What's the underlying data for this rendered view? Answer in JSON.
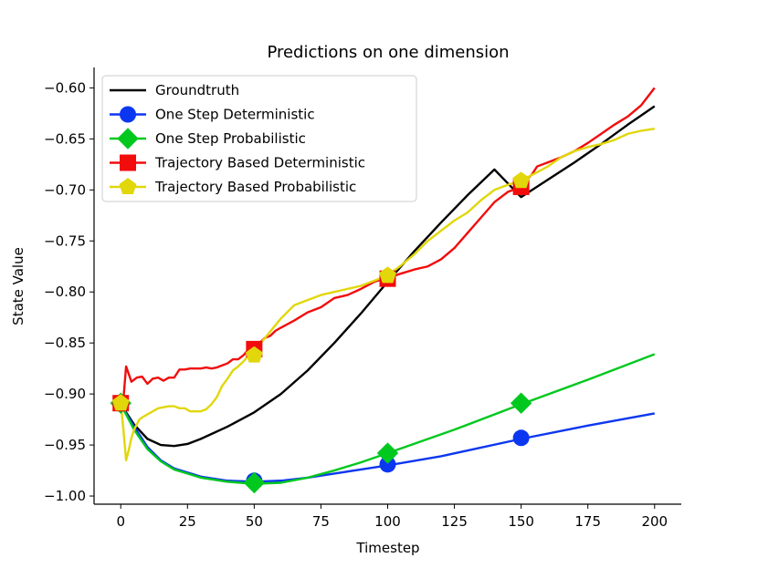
{
  "chart_data": {
    "type": "line",
    "title": "Predictions on one dimension",
    "xlabel": "Timestep",
    "ylabel": "State Value",
    "xlim": [
      -10,
      210
    ],
    "ylim": [
      -1.008,
      -0.58
    ],
    "xticks": [
      0,
      25,
      50,
      75,
      100,
      125,
      150,
      175,
      200
    ],
    "yticks": [
      -1.0,
      -0.95,
      -0.9,
      -0.85,
      -0.8,
      -0.75,
      -0.7,
      -0.65,
      -0.6
    ],
    "xtick_labels": [
      "0",
      "25",
      "50",
      "75",
      "100",
      "125",
      "150",
      "175",
      "200"
    ],
    "ytick_labels": [
      "−1.00",
      "−0.95",
      "−0.90",
      "−0.85",
      "−0.80",
      "−0.75",
      "−0.70",
      "−0.65",
      "−0.60"
    ],
    "legend_position": "top-left",
    "series": [
      {
        "name": "Groundtruth",
        "color": "#000000",
        "marker": "none",
        "x": [
          0,
          5,
          10,
          15,
          20,
          25,
          30,
          40,
          50,
          60,
          70,
          80,
          90,
          100,
          110,
          120,
          130,
          140,
          150,
          160,
          170,
          180,
          190,
          200
        ],
        "y": [
          -0.91,
          -0.93,
          -0.944,
          -0.95,
          -0.951,
          -0.949,
          -0.944,
          -0.932,
          -0.918,
          -0.9,
          -0.877,
          -0.85,
          -0.821,
          -0.79,
          -0.76,
          -0.732,
          -0.705,
          -0.68,
          -0.707,
          -0.69,
          -0.673,
          -0.655,
          -0.636,
          -0.618
        ],
        "markers_x": [],
        "markers_y": []
      },
      {
        "name": "One Step Deterministic",
        "color": "#0c37f0",
        "marker": "circle",
        "x": [
          0,
          5,
          10,
          15,
          20,
          30,
          40,
          50,
          60,
          70,
          80,
          90,
          100,
          120,
          150,
          175,
          200
        ],
        "y": [
          -0.91,
          -0.932,
          -0.952,
          -0.965,
          -0.973,
          -0.981,
          -0.985,
          -0.986,
          -0.985,
          -0.982,
          -0.978,
          -0.974,
          -0.97,
          -0.961,
          -0.944,
          -0.931,
          -0.919
        ],
        "markers_x": [
          50,
          100,
          150
        ],
        "markers_y": [
          -0.985,
          -0.969,
          -0.943
        ]
      },
      {
        "name": "One Step Probabilistic",
        "color": "#00c81e",
        "marker": "diamond",
        "x": [
          0,
          5,
          10,
          15,
          20,
          30,
          40,
          50,
          60,
          70,
          80,
          90,
          100,
          125,
          150,
          175,
          200
        ],
        "y": [
          -0.91,
          -0.935,
          -0.954,
          -0.966,
          -0.974,
          -0.982,
          -0.986,
          -0.988,
          -0.987,
          -0.982,
          -0.975,
          -0.967,
          -0.958,
          -0.935,
          -0.91,
          -0.886,
          -0.861
        ],
        "markers_x": [
          0,
          50,
          100,
          150
        ],
        "markers_y": [
          -0.909,
          -0.987,
          -0.958,
          -0.909
        ]
      },
      {
        "name": "Trajectory Based Deterministic",
        "color": "#f20c0c",
        "marker": "square",
        "x": [
          0,
          1,
          2,
          4,
          6,
          8,
          10,
          12,
          14,
          16,
          18,
          20,
          22,
          24,
          26,
          28,
          30,
          32,
          34,
          36,
          38,
          40,
          42,
          44,
          46,
          48,
          50,
          52,
          54,
          56,
          58,
          60,
          65,
          70,
          75,
          80,
          85,
          90,
          95,
          100,
          105,
          110,
          115,
          120,
          125,
          130,
          135,
          140,
          145,
          150,
          152,
          154,
          156,
          160,
          165,
          170,
          175,
          180,
          185,
          190,
          195,
          200
        ],
        "y": [
          -0.91,
          -0.905,
          -0.873,
          -0.888,
          -0.884,
          -0.883,
          -0.89,
          -0.885,
          -0.884,
          -0.887,
          -0.884,
          -0.884,
          -0.876,
          -0.876,
          -0.875,
          -0.875,
          -0.875,
          -0.874,
          -0.875,
          -0.874,
          -0.872,
          -0.87,
          -0.866,
          -0.866,
          -0.862,
          -0.856,
          -0.856,
          -0.85,
          -0.845,
          -0.843,
          -0.838,
          -0.835,
          -0.828,
          -0.82,
          -0.815,
          -0.806,
          -0.803,
          -0.797,
          -0.79,
          -0.786,
          -0.782,
          -0.778,
          -0.775,
          -0.768,
          -0.757,
          -0.742,
          -0.727,
          -0.712,
          -0.702,
          -0.697,
          -0.69,
          -0.685,
          -0.677,
          -0.673,
          -0.668,
          -0.662,
          -0.654,
          -0.645,
          -0.636,
          -0.628,
          -0.617,
          -0.6
        ],
        "markers_x": [
          0,
          50,
          100,
          150
        ],
        "markers_y": [
          -0.909,
          -0.856,
          -0.787,
          -0.697
        ]
      },
      {
        "name": "Trajectory Based Probabilistic",
        "color": "#e1d70a",
        "marker": "pentagon",
        "x": [
          0,
          1,
          2,
          3,
          4,
          5,
          6,
          7,
          8,
          10,
          12,
          14,
          16,
          18,
          20,
          22,
          24,
          26,
          28,
          30,
          32,
          34,
          36,
          38,
          40,
          42,
          44,
          46,
          48,
          50,
          55,
          60,
          65,
          70,
          75,
          80,
          85,
          90,
          95,
          100,
          105,
          110,
          115,
          120,
          125,
          130,
          135,
          140,
          145,
          150,
          155,
          160,
          165,
          170,
          175,
          180,
          185,
          190,
          195,
          200
        ],
        "y": [
          -0.909,
          -0.935,
          -0.965,
          -0.955,
          -0.943,
          -0.935,
          -0.93,
          -0.925,
          -0.923,
          -0.92,
          -0.917,
          -0.914,
          -0.913,
          -0.912,
          -0.912,
          -0.914,
          -0.914,
          -0.917,
          -0.917,
          -0.917,
          -0.915,
          -0.91,
          -0.903,
          -0.892,
          -0.885,
          -0.877,
          -0.873,
          -0.868,
          -0.862,
          -0.858,
          -0.842,
          -0.826,
          -0.813,
          -0.808,
          -0.803,
          -0.8,
          -0.797,
          -0.794,
          -0.789,
          -0.784,
          -0.774,
          -0.763,
          -0.75,
          -0.74,
          -0.73,
          -0.722,
          -0.71,
          -0.7,
          -0.695,
          -0.691,
          -0.684,
          -0.677,
          -0.668,
          -0.662,
          -0.658,
          -0.655,
          -0.651,
          -0.645,
          -0.642,
          -0.64
        ],
        "markers_x": [
          0,
          50,
          100,
          150
        ],
        "markers_y": [
          -0.909,
          -0.862,
          -0.784,
          -0.691
        ]
      }
    ]
  }
}
